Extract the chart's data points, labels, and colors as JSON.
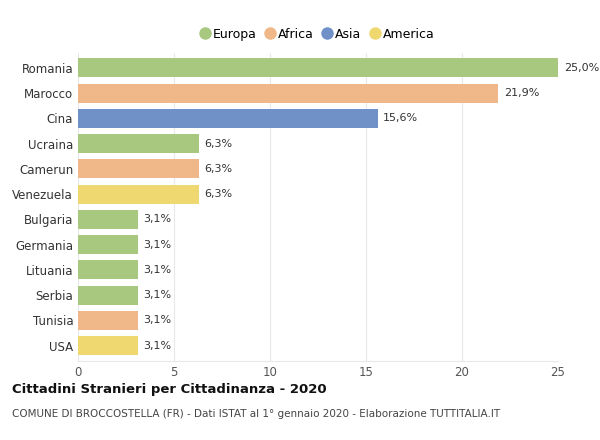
{
  "countries": [
    "Romania",
    "Marocco",
    "Cina",
    "Ucraina",
    "Camerun",
    "Venezuela",
    "Bulgaria",
    "Germania",
    "Lituania",
    "Serbia",
    "Tunisia",
    "USA"
  ],
  "values": [
    25.0,
    21.9,
    15.6,
    6.3,
    6.3,
    6.3,
    3.1,
    3.1,
    3.1,
    3.1,
    3.1,
    3.1
  ],
  "labels": [
    "25,0%",
    "21,9%",
    "15,6%",
    "6,3%",
    "6,3%",
    "6,3%",
    "3,1%",
    "3,1%",
    "3,1%",
    "3,1%",
    "3,1%",
    "3,1%"
  ],
  "colors": [
    "#a8c880",
    "#f0b888",
    "#7090c8",
    "#a8c880",
    "#f0b888",
    "#f0d870",
    "#a8c880",
    "#a8c880",
    "#a8c880",
    "#a8c880",
    "#f0b888",
    "#f0d870"
  ],
  "legend_labels": [
    "Europa",
    "Africa",
    "Asia",
    "America"
  ],
  "legend_colors": [
    "#a8c880",
    "#f0b888",
    "#7090c8",
    "#f0d870"
  ],
  "title": "Cittadini Stranieri per Cittadinanza - 2020",
  "subtitle": "COMUNE DI BROCCOSTELLA (FR) - Dati ISTAT al 1° gennaio 2020 - Elaborazione TUTTITALIA.IT",
  "xlim": [
    0,
    25
  ],
  "xticks": [
    0,
    5,
    10,
    15,
    20,
    25
  ],
  "background_color": "#ffffff",
  "grid_color": "#e8e8e8",
  "bar_alpha": 1.0,
  "bar_height": 0.75
}
